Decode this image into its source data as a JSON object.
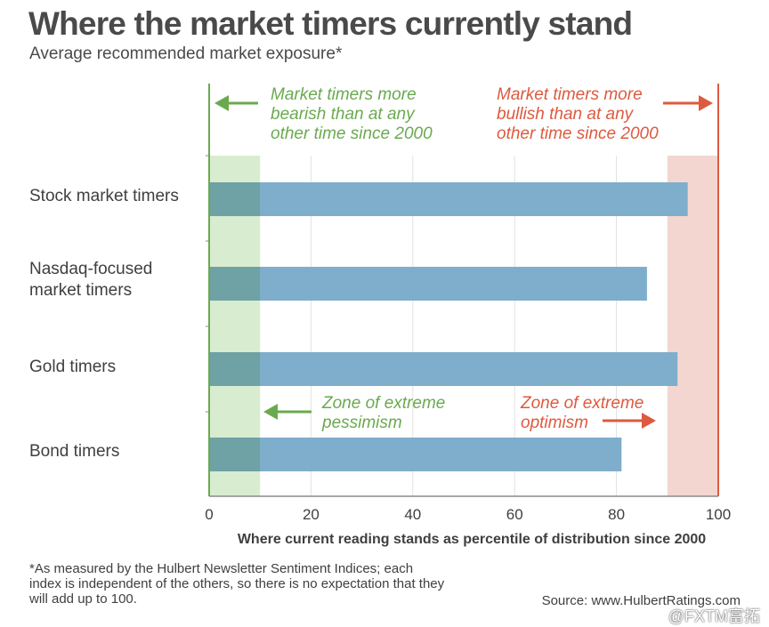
{
  "title": "Where the market timers currently stand",
  "subtitle": "Average recommended market exposure*",
  "colors": {
    "bar": "#7eaecb",
    "bear_zone": "#d8ecd0",
    "bull_zone": "#f3d6d0",
    "bear_accent": "#6aaa4f",
    "bull_accent": "#dd5a3f",
    "grid": "#e2e2e2",
    "axis": "#8a8a8a"
  },
  "chart_data": {
    "type": "bar",
    "orientation": "horizontal",
    "title": "Where the market timers currently stand",
    "subtitle": "Average recommended market exposure*",
    "categories": [
      [
        "Stock market timers"
      ],
      [
        "Nasdaq-focused",
        "market timers"
      ],
      [
        "Gold timers"
      ],
      [
        "Bond timers"
      ]
    ],
    "category_names": [
      "Stock market timers",
      "Nasdaq-focused market timers",
      "Gold timers",
      "Bond timers"
    ],
    "values": [
      94,
      86,
      92,
      81
    ],
    "xlabel": "Where current reading stands as percentile of distribution since 2000",
    "xlim": [
      0,
      100
    ],
    "xticks": [
      0,
      20,
      40,
      60,
      80,
      100
    ],
    "grid": true,
    "zones": [
      {
        "name": "Zone of extreme pessimism",
        "from": 0,
        "to": 10
      },
      {
        "name": "Zone of extreme optimism",
        "from": 90,
        "to": 100
      }
    ]
  },
  "annotations": {
    "bearish": [
      "Market timers more",
      "bearish than at any",
      "other time since 2000"
    ],
    "bullish": [
      "Market timers more",
      "bullish than at any",
      "other time since 2000"
    ],
    "pessimism": [
      "Zone of extreme",
      "pessimism"
    ],
    "optimism": [
      "Zone of extreme",
      "optimism"
    ]
  },
  "footnote": "*As measured by the Hulbert Newsletter Sentiment Indices; each index is independent of the others, so there is no expectation that they will add up to 100.",
  "source": "Source: www.HulbertRatings.com",
  "watermark": "@FXTM富拓"
}
